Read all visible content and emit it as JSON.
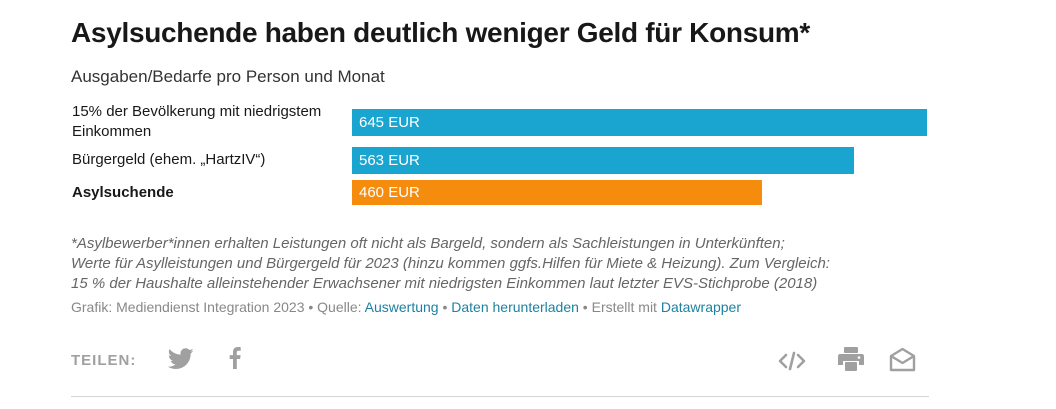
{
  "title": "Asylsuchende haben deutlich weniger Geld für Konsum*",
  "subtitle": "Ausgaben/Bedarfe pro Person und Monat",
  "chart_data": {
    "type": "bar",
    "orientation": "horizontal",
    "title": "Asylsuchende haben deutlich weniger Geld für Konsum*",
    "subtitle": "Ausgaben/Bedarfe pro Person und Monat",
    "categories": [
      "15% der Bevölkerung mit niedrigstem Einkommen",
      "Bürgergeld (ehem. „HartzIV“)",
      "Asylsuchende"
    ],
    "values": [
      645,
      563,
      460
    ],
    "value_labels": [
      "645 EUR",
      "563 EUR",
      "460 EUR"
    ],
    "bar_colors": [
      "#1aa4d0",
      "#1aa4d0",
      "#f68c0e"
    ],
    "bold_categories": [
      false,
      false,
      true
    ],
    "xlim": [
      0,
      645
    ],
    "grid": false,
    "unit": "EUR"
  },
  "notes": [
    "*Asylbewerber*innen erhalten Leistungen oft nicht als Bargeld, sondern als Sachleistungen in Unterkünften;",
    "Werte für Asylleistungen und Bürgergeld für 2023 (hinzu kommen ggfs.Hilfen für Miete & Heizung). Zum Vergleich:",
    "15 % der Haushalte alleinstehender Erwachsener mit niedrigsten Einkommen laut letzter EVS-Stichprobe (2018)"
  ],
  "source": {
    "prefix": "Grafik: Mediendienst Integration 2023 • Quelle: ",
    "link1": "Auswertung",
    "sep1": " • ",
    "link2": "Daten herunterladen",
    "sep2": " • Erstellt mit ",
    "link3": "Datawrapper"
  },
  "share": {
    "label": "TEILEN:",
    "icons": [
      "twitter-icon",
      "facebook-icon",
      "embed-code-icon",
      "print-icon",
      "email-icon"
    ],
    "icon_color": "#a0a0a0"
  }
}
